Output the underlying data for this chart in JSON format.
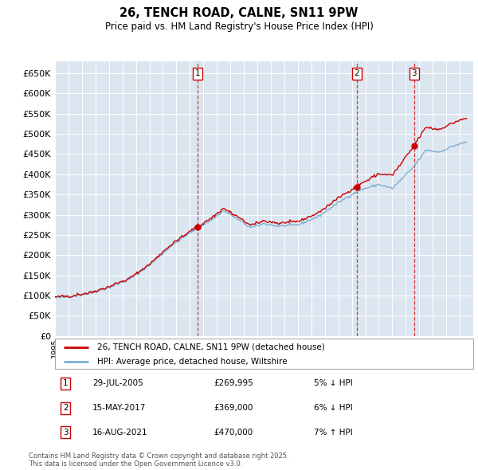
{
  "title": "26, TENCH ROAD, CALNE, SN11 9PW",
  "subtitle": "Price paid vs. HM Land Registry's House Price Index (HPI)",
  "ylim": [
    0,
    680000
  ],
  "yticks": [
    0,
    50000,
    100000,
    150000,
    200000,
    250000,
    300000,
    350000,
    400000,
    450000,
    500000,
    550000,
    600000,
    650000
  ],
  "background_color": "#dce6f0",
  "plot_bg_color": "#dce6f0",
  "legend_entries": [
    "26, TENCH ROAD, CALNE, SN11 9PW (detached house)",
    "HPI: Average price, detached house, Wiltshire"
  ],
  "sale_color": "#cc0000",
  "hpi_color": "#7bafd4",
  "transactions": [
    {
      "num": 1,
      "date": "29-JUL-2005",
      "price": 269995,
      "pct": "5%",
      "dir": "↓",
      "x": 2005.57
    },
    {
      "num": 2,
      "date": "15-MAY-2017",
      "price": 369000,
      "pct": "6%",
      "dir": "↓",
      "x": 2017.37
    },
    {
      "num": 3,
      "date": "16-AUG-2021",
      "price": 470000,
      "pct": "7%",
      "dir": "↑",
      "x": 2021.62
    }
  ],
  "footnote": "Contains HM Land Registry data © Crown copyright and database right 2025.\nThis data is licensed under the Open Government Licence v3.0.",
  "xmin": 1995,
  "xmax": 2026
}
